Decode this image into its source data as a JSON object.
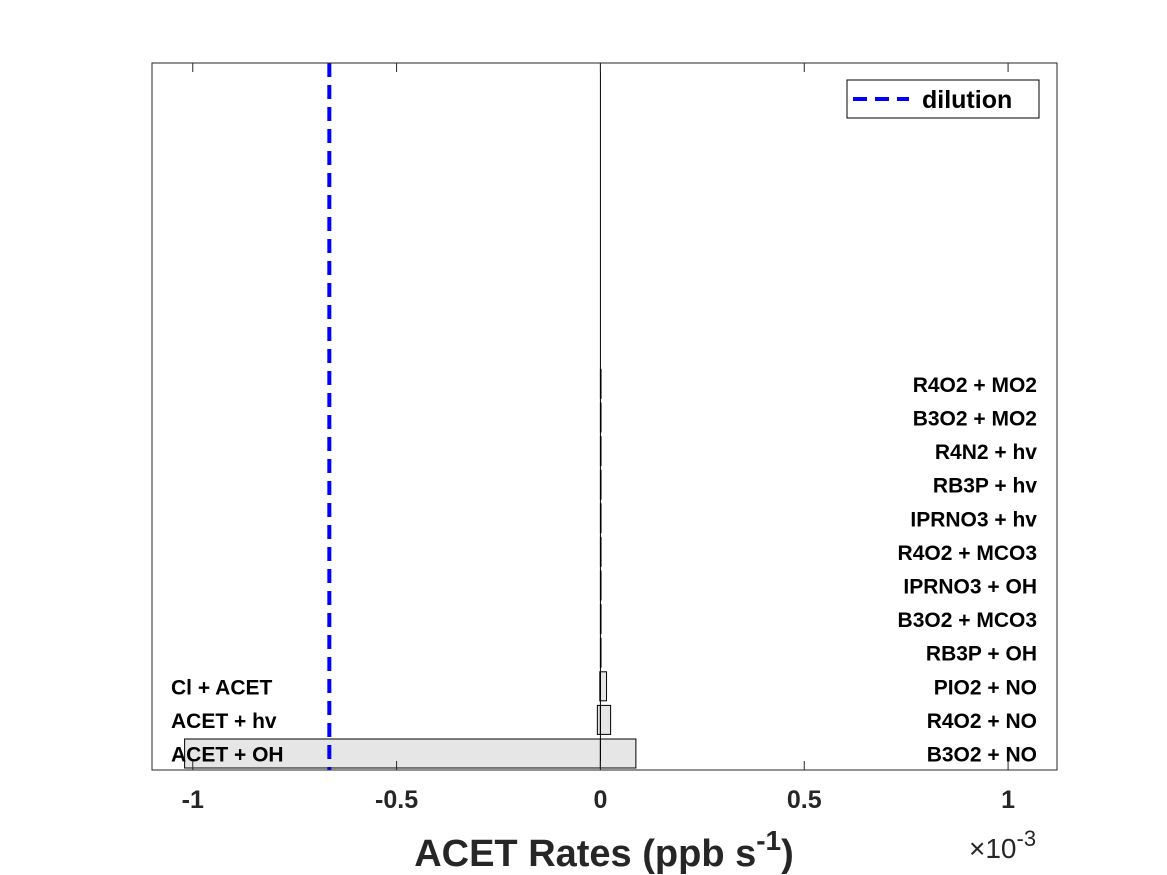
{
  "chart_data": {
    "type": "bar",
    "orientation": "horizontal",
    "title": "",
    "xlabel": {
      "main": "ACET Rates (ppb s",
      "sup": "-1",
      "close": ")"
    },
    "x_exponent": {
      "base": "×10",
      "sup": "-3"
    },
    "xlim": [
      -0.0011,
      0.00112
    ],
    "xticks": [
      {
        "value": -0.001,
        "label": "-1"
      },
      {
        "value": -0.0005,
        "label": "-0.5"
      },
      {
        "value": 0,
        "label": "0"
      },
      {
        "value": 0.0005,
        "label": "0.5"
      },
      {
        "value": 0.001,
        "label": "1"
      }
    ],
    "bar_count": 12,
    "stacks": [
      {
        "side": "negative",
        "segments": [
          {
            "label": "ACET + OH",
            "value": -0.00102
          },
          {
            "label": "ACET + hv",
            "value": -7.5e-06
          },
          {
            "label": "Cl + ACET",
            "value": -1.5e-06
          }
        ]
      },
      {
        "side": "positive",
        "segments": [
          {
            "label": "B3O2 + NO",
            "value": 8.7e-05
          },
          {
            "label": "R4O2 + NO",
            "value": 2.5e-05
          },
          {
            "label": "PIO2 + NO",
            "value": 1.5e-05
          },
          {
            "label": "RB3P + OH",
            "value": 5e-07
          },
          {
            "label": "B3O2 + MCO3",
            "value": 4e-07
          },
          {
            "label": "IPRNO3 + OH",
            "value": 3e-07
          },
          {
            "label": "R4O2 + MCO3",
            "value": 3e-07
          },
          {
            "label": "IPRNO3 + hv",
            "value": 2e-07
          },
          {
            "label": "RB3P + hv",
            "value": 2e-07
          },
          {
            "label": "R4N2 + hv",
            "value": 2e-07
          },
          {
            "label": "B3O2 + MO2",
            "value": 1e-07
          },
          {
            "label": "R4O2 + MO2",
            "value": 1e-07
          }
        ]
      }
    ],
    "dilution": {
      "value": -0.000665,
      "label": "dilution",
      "color": "#0000ff"
    },
    "legend": {
      "placement": "top-right"
    },
    "colors": {
      "bar_fill": "#e6e6e6",
      "bar_edge": "#000000",
      "axis": "#262626"
    },
    "grid": false
  }
}
